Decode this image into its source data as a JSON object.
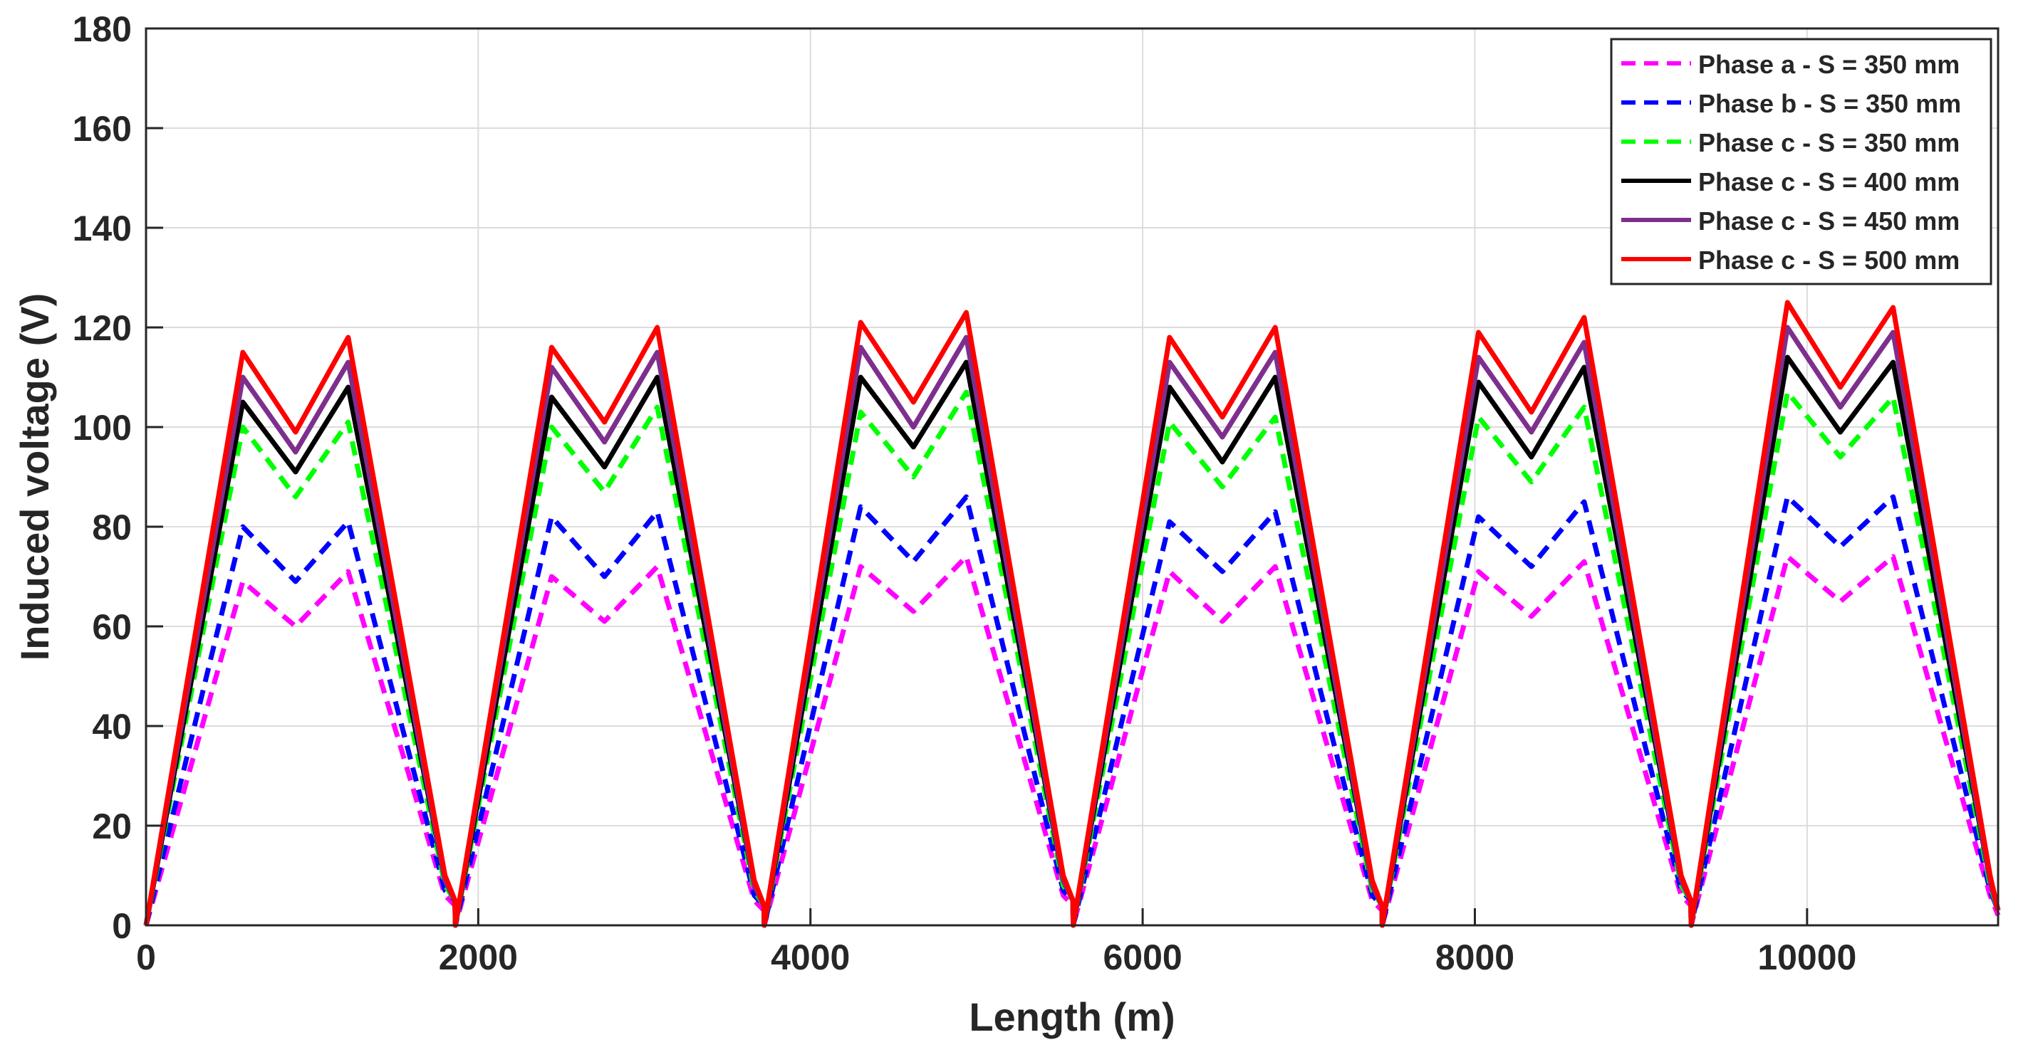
{
  "chart_data": {
    "type": "line",
    "xlabel": "Length (m)",
    "ylabel": "Induced voltage (V)",
    "xlim": [
      0,
      11150
    ],
    "ylim": [
      0,
      180
    ],
    "xticks": [
      0,
      2000,
      4000,
      6000,
      8000,
      10000
    ],
    "yticks": [
      0,
      20,
      40,
      60,
      80,
      100,
      120,
      140,
      160,
      180
    ],
    "grid": true,
    "legend_position": "top-right",
    "x": [
      0,
      583,
      900,
      1217,
      1800,
      1860,
      1862,
      2442,
      2760,
      3078,
      3662,
      3720,
      3722,
      4302,
      4620,
      4938,
      5522,
      5580,
      5582,
      6162,
      6480,
      6798,
      7382,
      7440,
      7442,
      8022,
      8340,
      8658,
      9242,
      9300,
      9302,
      9882,
      10200,
      10518,
      11102,
      11150
    ],
    "series": [
      {
        "name": "Phase a - S = 350 mm",
        "color": "#ff00ff",
        "dash": "dashed",
        "values": [
          0,
          69,
          60,
          71,
          6,
          4,
          0,
          70,
          61,
          72,
          5,
          3,
          0,
          72,
          63,
          74,
          6,
          4,
          0,
          71,
          61,
          72,
          5,
          3,
          0,
          71,
          62,
          73,
          6,
          4,
          0,
          74,
          65,
          74,
          6,
          2
        ]
      },
      {
        "name": "Phase b - S = 350 mm",
        "color": "#0000ff",
        "dash": "dashed",
        "values": [
          0,
          80,
          69,
          81,
          7,
          5,
          0,
          82,
          70,
          83,
          6,
          4,
          0,
          84,
          73,
          86,
          7,
          5,
          0,
          81,
          71,
          83,
          6,
          4,
          0,
          82,
          72,
          85,
          7,
          5,
          0,
          86,
          76,
          86,
          7,
          3
        ]
      },
      {
        "name": "Phase c - S = 350 mm",
        "color": "#00ff00",
        "dash": "dashed",
        "values": [
          0,
          100,
          86,
          101,
          8,
          5,
          0,
          100,
          87,
          104,
          7,
          4,
          0,
          103,
          90,
          107,
          8,
          5,
          0,
          101,
          88,
          102,
          7,
          4,
          0,
          102,
          89,
          104,
          8,
          5,
          0,
          107,
          94,
          106,
          8,
          3
        ]
      },
      {
        "name": "Phase c - S = 400 mm",
        "color": "#000000",
        "dash": "solid",
        "values": [
          0,
          105,
          91,
          108,
          9,
          5,
          0,
          106,
          92,
          110,
          8,
          4,
          0,
          110,
          96,
          113,
          9,
          5,
          0,
          108,
          93,
          110,
          8,
          4,
          0,
          109,
          94,
          112,
          9,
          5,
          0,
          114,
          99,
          113,
          9,
          3
        ]
      },
      {
        "name": "Phase c - S = 450 mm",
        "color": "#7e2f8e",
        "dash": "solid",
        "values": [
          0,
          110,
          95,
          113,
          9,
          5,
          0,
          112,
          97,
          115,
          8,
          4,
          0,
          116,
          100,
          118,
          9,
          5,
          0,
          113,
          98,
          115,
          8,
          4,
          0,
          114,
          99,
          117,
          9,
          5,
          0,
          120,
          104,
          119,
          9,
          3
        ]
      },
      {
        "name": "Phase c - S = 500 mm",
        "color": "#ff0000",
        "dash": "solid",
        "values": [
          0,
          115,
          99,
          118,
          10,
          5,
          0,
          116,
          101,
          120,
          9,
          4,
          0,
          121,
          105,
          123,
          10,
          5,
          0,
          118,
          102,
          120,
          9,
          4,
          0,
          119,
          103,
          122,
          10,
          5,
          0,
          125,
          108,
          124,
          10,
          3
        ]
      }
    ]
  }
}
